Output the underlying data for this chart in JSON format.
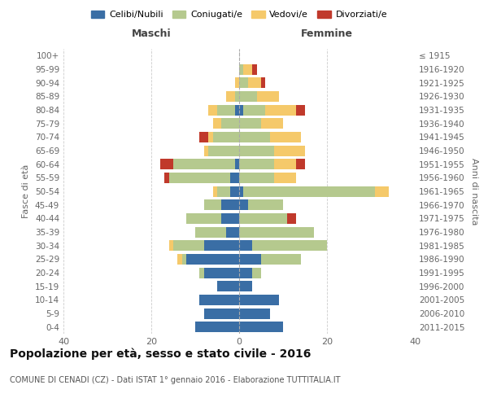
{
  "age_groups": [
    "0-4",
    "5-9",
    "10-14",
    "15-19",
    "20-24",
    "25-29",
    "30-34",
    "35-39",
    "40-44",
    "45-49",
    "50-54",
    "55-59",
    "60-64",
    "65-69",
    "70-74",
    "75-79",
    "80-84",
    "85-89",
    "90-94",
    "95-99",
    "100+"
  ],
  "birth_years": [
    "2011-2015",
    "2006-2010",
    "2001-2005",
    "1996-2000",
    "1991-1995",
    "1986-1990",
    "1981-1985",
    "1976-1980",
    "1971-1975",
    "1966-1970",
    "1961-1965",
    "1956-1960",
    "1951-1955",
    "1946-1950",
    "1941-1945",
    "1936-1940",
    "1931-1935",
    "1926-1930",
    "1921-1925",
    "1916-1920",
    "≤ 1915"
  ],
  "colors": {
    "celibi": "#3a6ea5",
    "coniugati": "#b5c98e",
    "vedovi": "#f5c96a",
    "divorziati": "#c0392b"
  },
  "maschi": {
    "celibi": [
      10,
      8,
      9,
      5,
      8,
      12,
      8,
      3,
      4,
      4,
      2,
      2,
      1,
      0,
      0,
      0,
      1,
      0,
      0,
      0,
      0
    ],
    "coniugati": [
      0,
      0,
      0,
      0,
      1,
      1,
      7,
      7,
      8,
      4,
      3,
      14,
      14,
      7,
      6,
      4,
      4,
      1,
      0,
      0,
      0
    ],
    "vedovi": [
      0,
      0,
      0,
      0,
      0,
      1,
      1,
      0,
      0,
      0,
      1,
      0,
      0,
      1,
      1,
      2,
      2,
      2,
      1,
      0,
      0
    ],
    "divorziati": [
      0,
      0,
      0,
      0,
      0,
      0,
      0,
      0,
      0,
      0,
      0,
      1,
      3,
      0,
      2,
      0,
      0,
      0,
      0,
      0,
      0
    ]
  },
  "femmine": {
    "celibi": [
      10,
      7,
      9,
      3,
      3,
      5,
      3,
      0,
      0,
      2,
      1,
      0,
      0,
      0,
      0,
      0,
      1,
      0,
      0,
      0,
      0
    ],
    "coniugati": [
      0,
      0,
      0,
      0,
      2,
      9,
      17,
      17,
      11,
      8,
      30,
      8,
      8,
      8,
      7,
      5,
      5,
      4,
      2,
      1,
      0
    ],
    "vedovi": [
      0,
      0,
      0,
      0,
      0,
      0,
      0,
      0,
      0,
      0,
      3,
      5,
      5,
      7,
      7,
      5,
      7,
      5,
      3,
      2,
      0
    ],
    "divorziati": [
      0,
      0,
      0,
      0,
      0,
      0,
      0,
      0,
      2,
      0,
      0,
      0,
      2,
      0,
      0,
      0,
      2,
      0,
      1,
      1,
      0
    ]
  },
  "xlim": 40,
  "title": "Popolazione per età, sesso e stato civile - 2016",
  "subtitle": "COMUNE DI CENADI (CZ) - Dati ISTAT 1° gennaio 2016 - Elaborazione TUTTITALIA.IT",
  "ylabel_left": "Fasce di età",
  "ylabel_right": "Anni di nascita",
  "xlabel_maschi": "Maschi",
  "xlabel_femmine": "Femmine",
  "bg_color": "#ffffff",
  "grid_color": "#cccccc",
  "legend_labels": [
    "Celibi/Nubili",
    "Coniugati/e",
    "Vedovi/e",
    "Divorziati/e"
  ]
}
